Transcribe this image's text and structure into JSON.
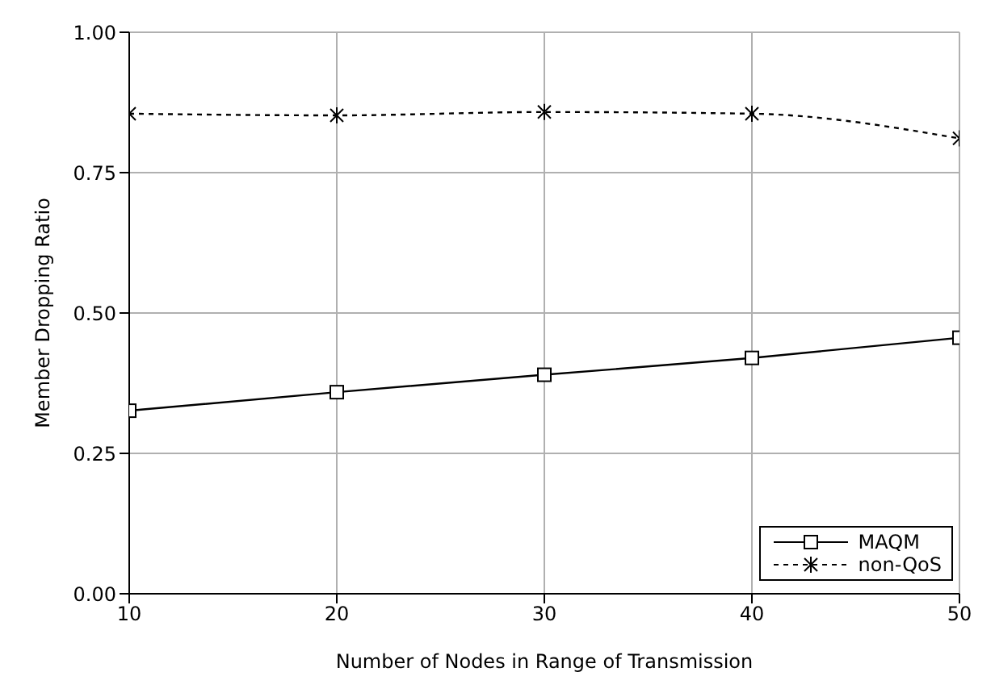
{
  "chart_data": {
    "type": "line",
    "xlabel": "Number of Nodes in Range of Transmission",
    "ylabel": "Member Dropping Ratio",
    "x": [
      10,
      20,
      30,
      40,
      50
    ],
    "xlim": [
      10,
      50
    ],
    "xticks": [
      10,
      20,
      30,
      40,
      50
    ],
    "ylim": [
      0,
      1
    ],
    "yticks": [
      {
        "value": 0,
        "label": "0.00"
      },
      {
        "value": 0.25,
        "label": "0.25"
      },
      {
        "value": 0.5,
        "label": "0.50"
      },
      {
        "value": 0.75,
        "label": "0.75"
      },
      {
        "value": 1,
        "label": "1.00"
      }
    ],
    "grid": true,
    "legend": "bottom right",
    "series": [
      {
        "name": "MAQM",
        "color": "#000000",
        "marker": "square",
        "line_style": "solid",
        "values": [
          0.326,
          0.359,
          0.39,
          0.42,
          0.456
        ]
      },
      {
        "name": "non-QoS",
        "color": "#000000",
        "marker": "cross",
        "line_style": "dotted",
        "values": [
          0.855,
          0.852,
          0.858,
          0.855,
          0.811
        ]
      }
    ]
  }
}
